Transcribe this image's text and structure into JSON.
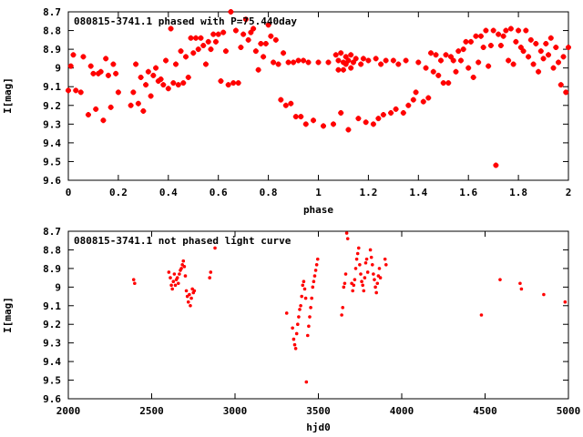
{
  "chart_data": [
    {
      "type": "scatter",
      "title": "080815-3741.1 phased with P=75.440day",
      "xlabel": "phase",
      "ylabel": "I[mag]",
      "xlim": [
        0,
        2
      ],
      "ylim": [
        9.6,
        8.7
      ],
      "y_inverted": true,
      "grid": false,
      "legend": "none",
      "color": "#ff0000",
      "marker": "star",
      "x_ticks": [
        "0",
        "0.2",
        "0.4",
        "0.6",
        "0.8",
        "1",
        "1.2",
        "1.4",
        "1.6",
        "1.8",
        "2"
      ],
      "y_ticks": [
        "8.7",
        "8.8",
        "8.9",
        "9",
        "9.1",
        "9.2",
        "9.3",
        "9.4",
        "9.5",
        "9.6"
      ],
      "points": [
        [
          0.0,
          9.12
        ],
        [
          0.01,
          8.99
        ],
        [
          0.02,
          8.93
        ],
        [
          0.03,
          9.12
        ],
        [
          0.05,
          9.13
        ],
        [
          0.06,
          8.94
        ],
        [
          0.08,
          9.25
        ],
        [
          0.09,
          8.99
        ],
        [
          0.1,
          9.03
        ],
        [
          0.11,
          9.22
        ],
        [
          0.12,
          9.03
        ],
        [
          0.13,
          9.02
        ],
        [
          0.14,
          9.28
        ],
        [
          0.15,
          8.95
        ],
        [
          0.16,
          9.04
        ],
        [
          0.17,
          9.21
        ],
        [
          0.18,
          8.98
        ],
        [
          0.19,
          9.03
        ],
        [
          0.2,
          9.13
        ],
        [
          0.25,
          9.2
        ],
        [
          0.26,
          9.13
        ],
        [
          0.27,
          8.98
        ],
        [
          0.28,
          9.19
        ],
        [
          0.29,
          9.05
        ],
        [
          0.3,
          9.23
        ],
        [
          0.31,
          9.09
        ],
        [
          0.32,
          9.02
        ],
        [
          0.33,
          9.15
        ],
        [
          0.34,
          9.04
        ],
        [
          0.35,
          9.0
        ],
        [
          0.36,
          9.07
        ],
        [
          0.37,
          9.06
        ],
        [
          0.38,
          9.09
        ],
        [
          0.39,
          8.96
        ],
        [
          0.4,
          9.11
        ],
        [
          0.41,
          8.79
        ],
        [
          0.42,
          9.08
        ],
        [
          0.43,
          8.98
        ],
        [
          0.44,
          9.09
        ],
        [
          0.45,
          8.91
        ],
        [
          0.46,
          9.08
        ],
        [
          0.47,
          8.94
        ],
        [
          0.48,
          9.05
        ],
        [
          0.49,
          8.84
        ],
        [
          0.5,
          8.92
        ],
        [
          0.51,
          8.84
        ],
        [
          0.52,
          8.9
        ],
        [
          0.53,
          8.84
        ],
        [
          0.54,
          8.88
        ],
        [
          0.55,
          8.98
        ],
        [
          0.56,
          8.86
        ],
        [
          0.57,
          8.9
        ],
        [
          0.58,
          8.82
        ],
        [
          0.59,
          8.86
        ],
        [
          0.6,
          8.82
        ],
        [
          0.61,
          9.07
        ],
        [
          0.62,
          8.81
        ],
        [
          0.63,
          8.91
        ],
        [
          0.64,
          9.09
        ],
        [
          0.65,
          8.7
        ],
        [
          0.66,
          9.08
        ],
        [
          0.67,
          8.8
        ],
        [
          0.68,
          9.08
        ],
        [
          0.69,
          8.89
        ],
        [
          0.7,
          8.82
        ],
        [
          0.71,
          8.74
        ],
        [
          0.72,
          8.85
        ],
        [
          0.73,
          8.81
        ],
        [
          0.74,
          8.79
        ],
        [
          0.75,
          8.91
        ],
        [
          0.76,
          9.01
        ],
        [
          0.77,
          8.87
        ],
        [
          0.78,
          8.94
        ],
        [
          0.79,
          8.87
        ],
        [
          0.8,
          8.77
        ],
        [
          0.81,
          8.83
        ],
        [
          0.82,
          8.97
        ],
        [
          0.83,
          8.85
        ],
        [
          0.84,
          8.98
        ],
        [
          0.85,
          9.17
        ],
        [
          0.86,
          8.92
        ],
        [
          0.87,
          9.2
        ],
        [
          0.88,
          8.97
        ],
        [
          0.89,
          9.19
        ],
        [
          0.9,
          8.97
        ],
        [
          0.91,
          9.26
        ],
        [
          0.92,
          8.96
        ],
        [
          0.93,
          9.26
        ],
        [
          0.94,
          8.96
        ],
        [
          0.95,
          9.3
        ],
        [
          0.96,
          8.97
        ],
        [
          0.98,
          9.28
        ],
        [
          1.0,
          8.97
        ],
        [
          1.02,
          9.31
        ],
        [
          1.04,
          8.97
        ],
        [
          1.06,
          9.3
        ],
        [
          1.07,
          8.93
        ],
        [
          1.08,
          8.96
        ],
        [
          1.08,
          9.01
        ],
        [
          1.09,
          8.92
        ],
        [
          1.09,
          9.24
        ],
        [
          1.1,
          8.97
        ],
        [
          1.1,
          9.01
        ],
        [
          1.11,
          8.94
        ],
        [
          1.11,
          8.98
        ],
        [
          1.12,
          9.33
        ],
        [
          1.12,
          8.96
        ],
        [
          1.13,
          9.0
        ],
        [
          1.13,
          8.93
        ],
        [
          1.14,
          8.97
        ],
        [
          1.15,
          8.95
        ],
        [
          1.16,
          9.27
        ],
        [
          1.17,
          8.98
        ],
        [
          1.18,
          8.95
        ],
        [
          1.19,
          9.29
        ],
        [
          1.2,
          8.96
        ],
        [
          1.22,
          9.3
        ],
        [
          1.23,
          8.95
        ],
        [
          1.24,
          9.27
        ],
        [
          1.25,
          8.98
        ],
        [
          1.26,
          9.25
        ],
        [
          1.27,
          8.96
        ],
        [
          1.29,
          9.24
        ],
        [
          1.3,
          8.96
        ],
        [
          1.31,
          9.22
        ],
        [
          1.32,
          8.98
        ],
        [
          1.34,
          9.24
        ],
        [
          1.35,
          8.96
        ],
        [
          1.36,
          9.2
        ],
        [
          1.38,
          9.17
        ],
        [
          1.39,
          9.13
        ],
        [
          1.4,
          8.97
        ],
        [
          1.42,
          9.18
        ],
        [
          1.43,
          9.0
        ],
        [
          1.44,
          9.16
        ],
        [
          1.45,
          8.92
        ],
        [
          1.46,
          9.02
        ],
        [
          1.47,
          8.93
        ],
        [
          1.48,
          9.04
        ],
        [
          1.49,
          8.96
        ],
        [
          1.5,
          9.08
        ],
        [
          1.51,
          8.93
        ],
        [
          1.52,
          9.08
        ],
        [
          1.53,
          8.94
        ],
        [
          1.54,
          8.96
        ],
        [
          1.55,
          9.02
        ],
        [
          1.56,
          8.91
        ],
        [
          1.57,
          8.96
        ],
        [
          1.58,
          8.9
        ],
        [
          1.59,
          8.86
        ],
        [
          1.6,
          9.0
        ],
        [
          1.61,
          8.86
        ],
        [
          1.62,
          9.05
        ],
        [
          1.63,
          8.83
        ],
        [
          1.64,
          8.97
        ],
        [
          1.65,
          8.83
        ],
        [
          1.66,
          8.89
        ],
        [
          1.67,
          8.8
        ],
        [
          1.68,
          8.99
        ],
        [
          1.69,
          8.88
        ],
        [
          1.7,
          8.8
        ],
        [
          1.71,
          9.52
        ],
        [
          1.72,
          8.82
        ],
        [
          1.73,
          8.88
        ],
        [
          1.74,
          8.83
        ],
        [
          1.75,
          8.8
        ],
        [
          1.76,
          8.96
        ],
        [
          1.77,
          8.79
        ],
        [
          1.78,
          8.98
        ],
        [
          1.79,
          8.86
        ],
        [
          1.8,
          8.8
        ],
        [
          1.81,
          8.89
        ],
        [
          1.82,
          8.91
        ],
        [
          1.83,
          8.8
        ],
        [
          1.84,
          8.94
        ],
        [
          1.85,
          8.85
        ],
        [
          1.86,
          8.98
        ],
        [
          1.87,
          8.87
        ],
        [
          1.88,
          9.02
        ],
        [
          1.89,
          8.91
        ],
        [
          1.9,
          8.95
        ],
        [
          1.91,
          8.87
        ],
        [
          1.92,
          8.93
        ],
        [
          1.93,
          8.84
        ],
        [
          1.94,
          9.0
        ],
        [
          1.95,
          8.89
        ],
        [
          1.96,
          8.97
        ],
        [
          1.97,
          9.09
        ],
        [
          1.98,
          8.94
        ],
        [
          1.99,
          9.13
        ],
        [
          2.0,
          8.89
        ]
      ]
    },
    {
      "type": "scatter",
      "title": "080815-3741.1 not phased light curve",
      "xlabel": "hjd0",
      "ylabel": "I[mag]",
      "xlim": [
        2000,
        5000
      ],
      "ylim": [
        9.6,
        8.7
      ],
      "y_inverted": true,
      "grid": false,
      "legend": "none",
      "color": "#ff0000",
      "marker": "dot",
      "x_ticks": [
        "2000",
        "2500",
        "3000",
        "3500",
        "4000",
        "4500",
        "5000"
      ],
      "y_ticks": [
        "8.7",
        "8.8",
        "8.9",
        "9",
        "9.1",
        "9.2",
        "9.3",
        "9.4",
        "9.5",
        "9.6"
      ],
      "points": [
        [
          2392,
          8.96
        ],
        [
          2398,
          8.98
        ],
        [
          2603,
          8.92
        ],
        [
          2612,
          8.95
        ],
        [
          2618,
          8.99
        ],
        [
          2624,
          9.01
        ],
        [
          2630,
          8.97
        ],
        [
          2636,
          8.93
        ],
        [
          2642,
          8.99
        ],
        [
          2648,
          8.96
        ],
        [
          2654,
          8.95
        ],
        [
          2660,
          8.98
        ],
        [
          2666,
          8.93
        ],
        [
          2672,
          8.91
        ],
        [
          2678,
          8.9
        ],
        [
          2684,
          8.88
        ],
        [
          2690,
          8.86
        ],
        [
          2696,
          8.89
        ],
        [
          2702,
          8.94
        ],
        [
          2708,
          9.02
        ],
        [
          2714,
          9.05
        ],
        [
          2720,
          9.08
        ],
        [
          2726,
          9.04
        ],
        [
          2732,
          9.1
        ],
        [
          2738,
          9.06
        ],
        [
          2744,
          9.01
        ],
        [
          2750,
          9.03
        ],
        [
          2756,
          9.02
        ],
        [
          2848,
          8.95
        ],
        [
          2854,
          8.92
        ],
        [
          2880,
          8.79
        ],
        [
          3310,
          9.14
        ],
        [
          3345,
          9.22
        ],
        [
          3352,
          9.28
        ],
        [
          3358,
          9.31
        ],
        [
          3364,
          9.33
        ],
        [
          3370,
          9.25
        ],
        [
          3376,
          9.2
        ],
        [
          3382,
          9.16
        ],
        [
          3388,
          9.12
        ],
        [
          3394,
          9.1
        ],
        [
          3400,
          9.05
        ],
        [
          3406,
          8.99
        ],
        [
          3412,
          8.97
        ],
        [
          3418,
          9.01
        ],
        [
          3424,
          9.06
        ],
        [
          3428,
          9.51
        ],
        [
          3436,
          9.26
        ],
        [
          3442,
          9.21
        ],
        [
          3448,
          9.16
        ],
        [
          3454,
          9.11
        ],
        [
          3460,
          9.06
        ],
        [
          3466,
          9.0
        ],
        [
          3472,
          8.97
        ],
        [
          3478,
          8.94
        ],
        [
          3484,
          8.91
        ],
        [
          3490,
          8.88
        ],
        [
          3496,
          8.85
        ],
        [
          3640,
          9.15
        ],
        [
          3646,
          9.11
        ],
        [
          3652,
          9.0
        ],
        [
          3658,
          8.98
        ],
        [
          3664,
          8.93
        ],
        [
          3670,
          8.71
        ],
        [
          3676,
          8.74
        ],
        [
          3700,
          8.98
        ],
        [
          3706,
          9.02
        ],
        [
          3712,
          8.99
        ],
        [
          3718,
          8.96
        ],
        [
          3724,
          8.9
        ],
        [
          3730,
          8.85
        ],
        [
          3736,
          8.82
        ],
        [
          3742,
          8.79
        ],
        [
          3748,
          8.88
        ],
        [
          3754,
          8.93
        ],
        [
          3760,
          8.97
        ],
        [
          3766,
          8.99
        ],
        [
          3772,
          9.02
        ],
        [
          3778,
          8.95
        ],
        [
          3784,
          8.87
        ],
        [
          3790,
          8.85
        ],
        [
          3796,
          8.92
        ],
        [
          3812,
          8.8
        ],
        [
          3818,
          8.84
        ],
        [
          3824,
          8.88
        ],
        [
          3830,
          8.93
        ],
        [
          3836,
          8.96
        ],
        [
          3842,
          9.0
        ],
        [
          3848,
          9.03
        ],
        [
          3854,
          8.98
        ],
        [
          3860,
          8.94
        ],
        [
          3866,
          8.9
        ],
        [
          3872,
          8.95
        ],
        [
          3900,
          8.85
        ],
        [
          3906,
          8.88
        ],
        [
          4478,
          9.15
        ],
        [
          4590,
          8.96
        ],
        [
          4710,
          8.98
        ],
        [
          4718,
          9.01
        ],
        [
          4852,
          9.04
        ],
        [
          4980,
          9.08
        ]
      ]
    }
  ]
}
